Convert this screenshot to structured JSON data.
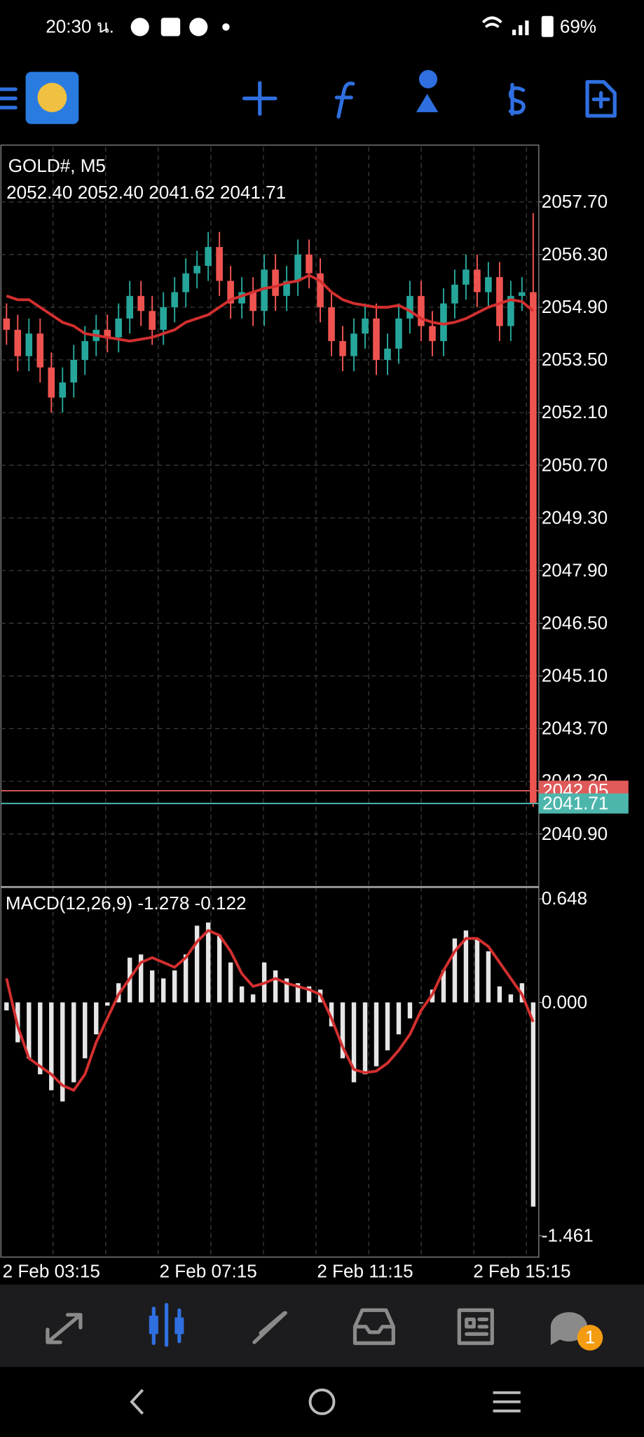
{
  "status_bar": {
    "time": "20:30 น.",
    "battery": "69%"
  },
  "chart_data": [
    {
      "type": "candlestick",
      "title": "GOLD#, M5",
      "subtitle": "2052.40 2052.40 2041.62 2041.71",
      "up_color": "#26a69a",
      "down_color": "#ef5350",
      "open": [
        2054.6,
        2054.3,
        2053.6,
        2054.2,
        2053.3,
        2052.5,
        2052.9,
        2053.5,
        2054.0,
        2054.3,
        2054.1,
        2054.6,
        2055.2,
        2054.8,
        2054.3,
        2054.9,
        2055.3,
        2055.8,
        2056.0,
        2056.5,
        2055.6,
        2055.0,
        2055.3,
        2054.8,
        2055.9,
        2055.2,
        2055.6,
        2056.3,
        2055.8,
        2054.9,
        2054.0,
        2053.6,
        2054.2,
        2054.6,
        2053.5,
        2053.8,
        2054.6,
        2055.2,
        2054.4,
        2054.0,
        2055.0,
        2055.5,
        2055.9,
        2055.3,
        2055.7,
        2054.4,
        2055.2,
        2055.3
      ],
      "high": [
        2055.0,
        2054.7,
        2054.6,
        2054.6,
        2053.7,
        2053.3,
        2053.9,
        2054.4,
        2054.7,
        2054.7,
        2055.0,
        2055.6,
        2055.6,
        2055.2,
        2055.3,
        2055.7,
        2056.2,
        2056.4,
        2056.9,
        2056.9,
        2056.0,
        2055.7,
        2055.7,
        2056.3,
        2056.3,
        2056.0,
        2056.7,
        2056.7,
        2056.2,
        2055.3,
        2054.4,
        2054.6,
        2055.0,
        2055.0,
        2054.2,
        2055.0,
        2055.6,
        2055.6,
        2054.8,
        2055.4,
        2055.9,
        2056.3,
        2056.3,
        2056.1,
        2056.1,
        2055.6,
        2055.7,
        2057.4
      ],
      "low": [
        2053.9,
        2053.2,
        2053.2,
        2052.9,
        2052.1,
        2052.1,
        2052.5,
        2053.1,
        2053.6,
        2053.7,
        2053.7,
        2054.2,
        2054.4,
        2053.9,
        2053.9,
        2054.5,
        2054.9,
        2055.4,
        2055.6,
        2055.2,
        2054.6,
        2054.6,
        2054.4,
        2054.4,
        2054.8,
        2054.8,
        2055.2,
        2055.4,
        2054.5,
        2053.6,
        2053.2,
        2053.2,
        2053.8,
        2053.1,
        2053.1,
        2053.4,
        2054.2,
        2054.0,
        2053.6,
        2053.6,
        2054.6,
        2055.1,
        2054.9,
        2054.9,
        2054.0,
        2054.0,
        2054.8,
        2041.62
      ],
      "close": [
        2054.3,
        2053.6,
        2054.2,
        2053.3,
        2052.5,
        2052.9,
        2053.5,
        2054.0,
        2054.3,
        2054.1,
        2054.6,
        2055.2,
        2054.8,
        2054.3,
        2054.9,
        2055.3,
        2055.8,
        2056.0,
        2056.5,
        2055.6,
        2055.0,
        2055.3,
        2054.8,
        2055.9,
        2055.2,
        2055.6,
        2056.3,
        2055.8,
        2054.9,
        2054.0,
        2053.6,
        2054.2,
        2054.6,
        2053.5,
        2053.8,
        2054.6,
        2055.2,
        2054.4,
        2054.0,
        2055.0,
        2055.5,
        2055.9,
        2055.3,
        2055.7,
        2054.4,
        2055.2,
        2055.3,
        2041.71
      ],
      "overlay": {
        "color": "#d32f2f",
        "values": [
          2055.2,
          2055.1,
          2055.1,
          2054.9,
          2054.7,
          2054.5,
          2054.4,
          2054.2,
          2054.15,
          2054.1,
          2054.05,
          2054.0,
          2054.05,
          2054.1,
          2054.2,
          2054.3,
          2054.5,
          2054.6,
          2054.7,
          2054.9,
          2055.1,
          2055.2,
          2055.3,
          2055.4,
          2055.45,
          2055.55,
          2055.6,
          2055.75,
          2055.6,
          2055.3,
          2055.1,
          2055.0,
          2054.95,
          2054.9,
          2054.9,
          2054.95,
          2054.8,
          2054.6,
          2054.5,
          2054.45,
          2054.5,
          2054.6,
          2054.75,
          2054.9,
          2055.0,
          2055.1,
          2055.05,
          2054.8
        ]
      },
      "ylim": [
        2039.49,
        2059.16
      ],
      "yticks": [
        {
          "value": 2057.7,
          "label": "2057.70"
        },
        {
          "value": 2056.3,
          "label": "2056.30"
        },
        {
          "value": 2054.9,
          "label": "2054.90"
        },
        {
          "value": 2053.5,
          "label": "2053.50"
        },
        {
          "value": 2052.1,
          "label": "2052.10"
        },
        {
          "value": 2050.7,
          "label": "2050.70"
        },
        {
          "value": 2049.3,
          "label": "2049.30"
        },
        {
          "value": 2047.9,
          "label": "2047.90"
        },
        {
          "value": 2046.5,
          "label": "2046.50"
        },
        {
          "value": 2045.1,
          "label": "2045.10"
        },
        {
          "value": 2043.7,
          "label": "2043.70"
        },
        {
          "value": 2042.3,
          "label": "2042.30"
        },
        {
          "value": 2040.9,
          "label": "2040.90"
        }
      ],
      "grid": true,
      "price_lines": [
        {
          "value": 2042.05,
          "label": "2042.05",
          "color": "#e05a5a"
        },
        {
          "value": 2041.71,
          "label": "2041.71",
          "color": "#4db6ac"
        }
      ]
    },
    {
      "type": "macd",
      "title": "MACD(12,26,9) -1.278 -0.122",
      "categories": [
        null,
        null,
        null,
        null,
        "2 Feb 03:15",
        null,
        null,
        null,
        null,
        null,
        null,
        null,
        null,
        null,
        null,
        null,
        null,
        null,
        "2 Feb 07:15",
        null,
        null,
        null,
        null,
        null,
        null,
        null,
        null,
        null,
        null,
        null,
        null,
        null,
        "2 Feb 11:15",
        null,
        null,
        null,
        null,
        null,
        null,
        null,
        null,
        null,
        null,
        null,
        null,
        null,
        "2 Feb 15:15",
        null
      ],
      "histogram": {
        "color": "#e6e6e6",
        "values": [
          -0.05,
          -0.25,
          -0.35,
          -0.45,
          -0.55,
          -0.62,
          -0.5,
          -0.35,
          -0.2,
          -0.02,
          0.12,
          0.28,
          0.3,
          0.2,
          0.15,
          0.2,
          0.3,
          0.48,
          0.5,
          0.42,
          0.25,
          0.1,
          0.05,
          0.25,
          0.2,
          0.15,
          0.12,
          0.1,
          0.08,
          -0.15,
          -0.35,
          -0.5,
          -0.45,
          -0.4,
          -0.3,
          -0.2,
          -0.1,
          0.0,
          0.08,
          0.2,
          0.4,
          0.45,
          0.4,
          0.32,
          0.1,
          0.05,
          0.12,
          -1.278
        ]
      },
      "signal": {
        "color": "#d32f2f",
        "values": [
          0.15,
          -0.15,
          -0.35,
          -0.4,
          -0.45,
          -0.52,
          -0.55,
          -0.45,
          -0.25,
          -0.1,
          0.05,
          0.15,
          0.25,
          0.28,
          0.25,
          0.22,
          0.28,
          0.38,
          0.45,
          0.42,
          0.32,
          0.18,
          0.1,
          0.12,
          0.15,
          0.12,
          0.1,
          0.08,
          0.05,
          -0.1,
          -0.28,
          -0.42,
          -0.44,
          -0.43,
          -0.38,
          -0.3,
          -0.2,
          -0.05,
          0.05,
          0.2,
          0.32,
          0.4,
          0.4,
          0.35,
          0.25,
          0.15,
          0.05,
          -0.122
        ]
      },
      "ylim": [
        -1.594,
        0.722
      ],
      "yticks": [
        0.648,
        {
          "value": 0,
          "label": "0.000"
        },
        -1.461
      ],
      "grid": false
    }
  ],
  "nav": {
    "chat_badge": "1"
  }
}
